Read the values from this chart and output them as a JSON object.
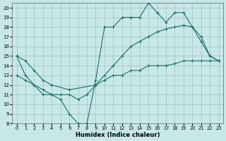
{
  "xlabel": "Humidex (Indice chaleur)",
  "background_color": "#c8e8e8",
  "grid_color": "#a0c0c0",
  "line_color": "#1a7060",
  "xlim": [
    -0.5,
    23.5
  ],
  "ylim": [
    8,
    20.5
  ],
  "yticks": [
    8,
    9,
    10,
    11,
    12,
    13,
    14,
    15,
    16,
    17,
    18,
    19,
    20
  ],
  "xticks": [
    0,
    1,
    2,
    3,
    4,
    5,
    6,
    7,
    8,
    9,
    10,
    11,
    12,
    13,
    14,
    15,
    16,
    17,
    18,
    19,
    20,
    21,
    22,
    23
  ],
  "line1_x": [
    0,
    1,
    2,
    3,
    4,
    5,
    6,
    7,
    8,
    9,
    10,
    11,
    12,
    13,
    14,
    15,
    16,
    17,
    18,
    19,
    20,
    21,
    22,
    23
  ],
  "line1_y": [
    15,
    13,
    12,
    11,
    11,
    10.5,
    9,
    8,
    8,
    12.5,
    18,
    18,
    19,
    19,
    19,
    20.5,
    19.5,
    18.5,
    19.5,
    19.5,
    18,
    16.5,
    15,
    14.5
  ],
  "line2_x": [
    0,
    1,
    2,
    3,
    4,
    6,
    9,
    10,
    11,
    12,
    13,
    14,
    15,
    16,
    17,
    18,
    19,
    20,
    21,
    22,
    23
  ],
  "line2_y": [
    15,
    14.5,
    13.5,
    12.5,
    12,
    11.5,
    12,
    13,
    14,
    15,
    16,
    16.5,
    17,
    17.5,
    17.8,
    18,
    18.2,
    18,
    17,
    15,
    14.5
  ],
  "line3_x": [
    0,
    1,
    2,
    3,
    4,
    5,
    6,
    7,
    8,
    9,
    10,
    11,
    12,
    13,
    14,
    15,
    16,
    17,
    18,
    19,
    20,
    21,
    22,
    23
  ],
  "line3_y": [
    13,
    12.5,
    12,
    11.5,
    11,
    11,
    11,
    10.5,
    11,
    12,
    12.5,
    13,
    13,
    13.5,
    13.5,
    14,
    14,
    14,
    14.2,
    14.5,
    14.5,
    14.5,
    14.5,
    14.5
  ]
}
